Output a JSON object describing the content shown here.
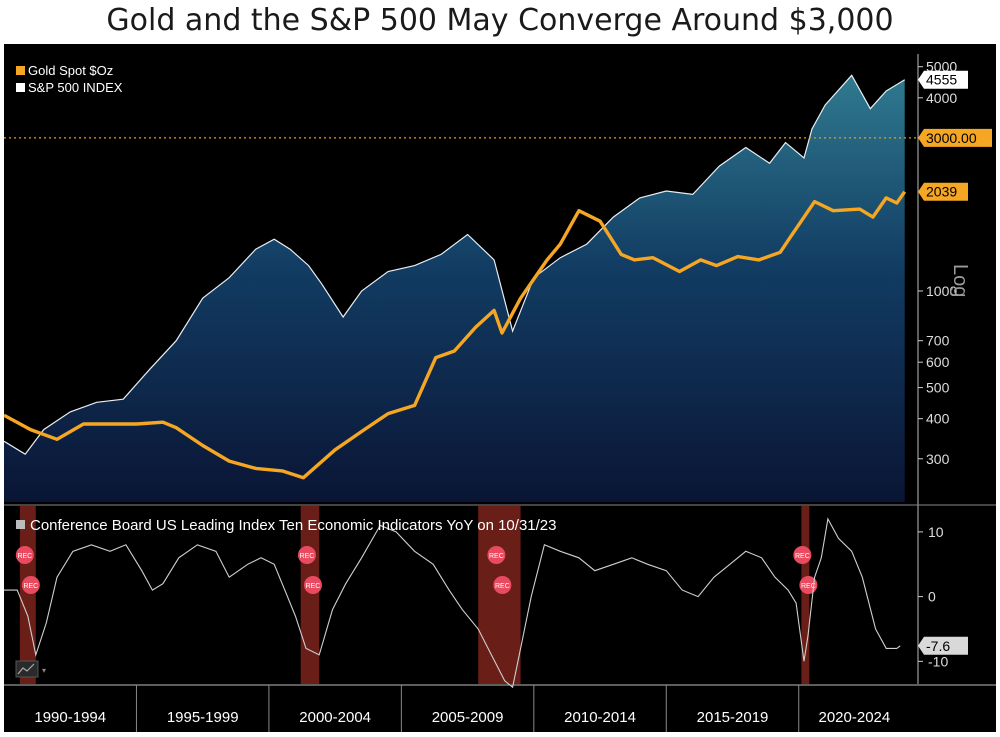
{
  "title": "Gold and the S&P 500 May Converge Around $3,000",
  "colors": {
    "gold": "#f5a623",
    "sp500": "#e8eef2",
    "lei": "#cfcfcf",
    "recession": "#c0392b",
    "ref_line": "#e0a020"
  },
  "chart_data": [
    {
      "type": "line",
      "title": "Gold and the S&P 500 May Converge Around $3,000",
      "scale": "log",
      "ylim": [
        220,
        5400
      ],
      "ylabel": "Log",
      "y_ticks": [
        300,
        400,
        500,
        600,
        700,
        1000,
        4000,
        5000
      ],
      "x_range": [
        1990.0,
        2024.2
      ],
      "legend_position": "top-left",
      "reference_line": {
        "value": 3000,
        "label": "3000.00"
      },
      "series": [
        {
          "name": "Gold Spot $Oz",
          "color": "#f5a623",
          "last_value": 2039,
          "x": [
            1990.0,
            1991.0,
            1992.0,
            1993.0,
            1994.0,
            1995.0,
            1996.0,
            1996.5,
            1997.5,
            1998.5,
            1999.5,
            2000.5,
            2001.3,
            2002.5,
            2003.5,
            2004.5,
            2005.5,
            2006.3,
            2007.0,
            2007.8,
            2008.5,
            2008.8,
            2009.5,
            2010.5,
            2011.0,
            2011.7,
            2012.5,
            2013.3,
            2013.8,
            2014.5,
            2015.5,
            2016.3,
            2016.9,
            2017.7,
            2018.5,
            2019.3,
            2019.7,
            2020.6,
            2021.3,
            2022.3,
            2022.8,
            2023.3,
            2023.7,
            2024.0
          ],
          "y": [
            410,
            370,
            345,
            385,
            385,
            385,
            390,
            375,
            330,
            295,
            280,
            275,
            262,
            320,
            365,
            415,
            440,
            620,
            650,
            770,
            870,
            740,
            950,
            1250,
            1400,
            1780,
            1650,
            1300,
            1250,
            1270,
            1150,
            1250,
            1200,
            1280,
            1250,
            1320,
            1480,
            1900,
            1780,
            1800,
            1700,
            1950,
            1880,
            2039
          ]
        },
        {
          "name": "S&P 500 INDEX",
          "color": "#e8eef2",
          "last_value": 4555,
          "x": [
            1990.0,
            1990.8,
            1991.5,
            1992.5,
            1993.5,
            1994.5,
            1995.5,
            1996.5,
            1997.5,
            1998.5,
            1999.5,
            2000.2,
            2000.8,
            2001.5,
            2002.0,
            2002.8,
            2003.5,
            2004.5,
            2005.5,
            2006.5,
            2007.5,
            2008.5,
            2009.2,
            2010.0,
            2011.0,
            2012.0,
            2013.0,
            2014.0,
            2015.0,
            2016.0,
            2017.0,
            2018.0,
            2018.9,
            2019.5,
            2020.2,
            2020.5,
            2021.0,
            2022.0,
            2022.7,
            2023.3,
            2024.0
          ],
          "y": [
            340,
            310,
            370,
            420,
            450,
            460,
            570,
            700,
            950,
            1100,
            1350,
            1450,
            1350,
            1200,
            1050,
            830,
            1000,
            1150,
            1200,
            1300,
            1500,
            1250,
            750,
            1100,
            1270,
            1400,
            1700,
            1950,
            2050,
            2000,
            2450,
            2800,
            2500,
            2900,
            2600,
            3200,
            3800,
            4700,
            3700,
            4200,
            4555
          ]
        }
      ]
    },
    {
      "type": "line",
      "title": "Conference Board US Leading Index Ten Economic Indicators YoY on 10/31/23",
      "ylim": [
        -13.5,
        14
      ],
      "y_ticks": [
        10,
        0,
        -10
      ],
      "x_range": [
        1990.0,
        2024.2
      ],
      "last_value": -7.6,
      "recession_bands": [
        [
          1990.6,
          1991.2
        ],
        [
          2001.2,
          2001.9
        ],
        [
          2007.9,
          2009.5
        ],
        [
          2020.1,
          2020.4
        ]
      ],
      "recession_label": "REC",
      "series": [
        {
          "name": "Conference Board US Leading Index Ten Economic Indicators YoY on 10/31/23",
          "color": "#cfcfcf",
          "x": [
            1990.0,
            1990.5,
            1990.9,
            1991.2,
            1991.6,
            1992.0,
            1992.6,
            1993.3,
            1994.0,
            1994.6,
            1995.2,
            1995.6,
            1996.0,
            1996.6,
            1997.3,
            1998.0,
            1998.5,
            1999.2,
            1999.7,
            2000.2,
            2000.6,
            2001.0,
            2001.4,
            2001.9,
            2002.4,
            2002.9,
            2003.5,
            2004.2,
            2004.8,
            2005.5,
            2006.2,
            2006.8,
            2007.3,
            2007.9,
            2008.4,
            2008.9,
            2009.2,
            2009.5,
            2009.9,
            2010.4,
            2011.0,
            2011.7,
            2012.3,
            2013.0,
            2013.7,
            2014.3,
            2015.0,
            2015.6,
            2016.2,
            2016.8,
            2017.4,
            2018.0,
            2018.6,
            2019.1,
            2019.6,
            2019.9,
            2020.2,
            2020.35,
            2020.6,
            2020.85,
            2021.1,
            2021.5,
            2022.0,
            2022.4,
            2022.9,
            2023.3,
            2023.7,
            2023.83
          ],
          "y": [
            1,
            1,
            -3,
            -9,
            -4,
            3,
            7,
            8,
            7,
            8,
            4,
            1,
            2,
            6,
            8,
            7,
            3,
            5,
            6,
            5,
            1,
            -3,
            -8,
            -9,
            -2,
            2,
            6,
            11,
            10,
            7,
            5,
            1,
            -2,
            -5,
            -9,
            -13,
            -14,
            -8,
            0,
            8,
            7,
            6,
            4,
            5,
            6,
            5,
            4,
            1,
            0,
            3,
            5,
            7,
            6,
            3,
            1,
            -1,
            -10,
            -6,
            3,
            6,
            12,
            9,
            7,
            3,
            -5,
            -8,
            -8,
            -7.6
          ]
        }
      ]
    }
  ],
  "x_axis": {
    "labels": [
      "1990-1994",
      "1995-1999",
      "2000-2004",
      "2005-2009",
      "2010-2014",
      "2015-2019",
      "2020-2024"
    ]
  }
}
